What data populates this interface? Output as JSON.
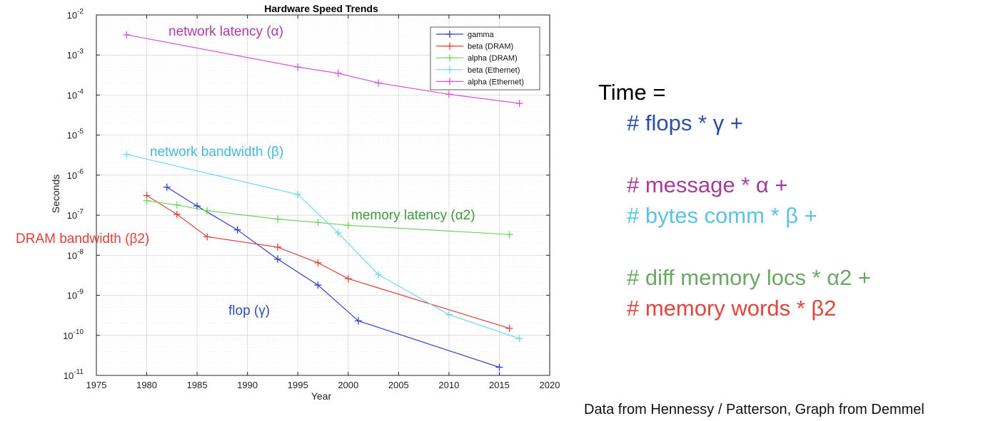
{
  "chart_data": {
    "type": "line",
    "title": "Hardware Speed Trends",
    "xlabel": "Year",
    "ylabel": "Seconds",
    "xlim": [
      1975,
      2020
    ],
    "ylim_exponents": [
      -11,
      -2
    ],
    "yscale": "log",
    "grid": true,
    "legend_placement": "top-right",
    "x_ticks": [
      "1975",
      "1980",
      "1985",
      "1990",
      "1995",
      "2000",
      "2005",
      "2010",
      "2015",
      "2020"
    ],
    "y_tick_exponents": [
      "-11",
      "-10",
      "-9",
      "-8",
      "-7",
      "-6",
      "-5",
      "-4",
      "-3",
      "-2"
    ],
    "y_tick_base": "10",
    "series": [
      {
        "name": "gamma",
        "color": "#2d3fd0",
        "points": [
          [
            1982,
            5e-07
          ],
          [
            1985,
            1.7e-07
          ],
          [
            1989,
            4.3e-08
          ],
          [
            1993,
            8e-09
          ],
          [
            1997,
            1.8e-09
          ],
          [
            2001,
            2.3e-10
          ],
          [
            2015,
            1.6e-11
          ]
        ]
      },
      {
        "name": "beta (DRAM)",
        "color": "#e0403c",
        "points": [
          [
            1980,
            3.1e-07
          ],
          [
            1983,
            1.05e-07
          ],
          [
            1986,
            2.9e-08
          ],
          [
            1993,
            1.6e-08
          ],
          [
            1997,
            6.5e-09
          ],
          [
            2000,
            2.6e-09
          ],
          [
            2016,
            1.5e-10
          ]
        ]
      },
      {
        "name": "alpha (DRAM)",
        "color": "#6ad35a",
        "points": [
          [
            1980,
            2.3e-07
          ],
          [
            1983,
            1.8e-07
          ],
          [
            1986,
            1.3e-07
          ],
          [
            1993,
            8e-08
          ],
          [
            1997,
            6.6e-08
          ],
          [
            2000,
            5.6e-08
          ],
          [
            2016,
            3.3e-08
          ]
        ]
      },
      {
        "name": "beta (Ethernet)",
        "color": "#6cdbe8",
        "points": [
          [
            1978,
            3.3e-06
          ],
          [
            1995,
            3.3e-07
          ],
          [
            1999,
            3.6e-08
          ],
          [
            2003,
            3.3e-09
          ],
          [
            2010,
            3.3e-10
          ],
          [
            2017,
            8.3e-11
          ]
        ]
      },
      {
        "name": "alpha (Ethernet)",
        "color": "#d855d5",
        "points": [
          [
            1978,
            0.0032
          ],
          [
            1995,
            0.0005
          ],
          [
            1999,
            0.00035
          ],
          [
            2003,
            0.0002
          ],
          [
            2010,
            0.000105
          ],
          [
            2017,
            6.2e-05
          ]
        ]
      }
    ],
    "annotations": [
      {
        "text": "network latency (α)",
        "color": "#b03aa8"
      },
      {
        "text": "network bandwidth (β)",
        "color": "#45b8df"
      },
      {
        "text": "memory latency (α2)",
        "color": "#3e9a3e"
      },
      {
        "text": "DRAM  bandwidth (β2)",
        "color": "#e0403c"
      },
      {
        "text": "flop (γ)",
        "color": "#2f4fb5"
      }
    ]
  },
  "formula": {
    "lines": [
      {
        "text": "Time =",
        "color": "#000000"
      },
      {
        "text": "# flops * γ  +",
        "color": "#2c4ea8"
      },
      {
        "text": "# message *  α  +",
        "color": "#a43c9a"
      },
      {
        "text": "# bytes comm  * β   +",
        "color": "#5bc3e6"
      },
      {
        "text": "# diff memory locs  * α2  +",
        "color": "#6aa864"
      },
      {
        "text": "#  memory words * β2",
        "color": "#e2443e"
      }
    ]
  },
  "source_note": "Data from Hennessy / Patterson, Graph from Demmel"
}
